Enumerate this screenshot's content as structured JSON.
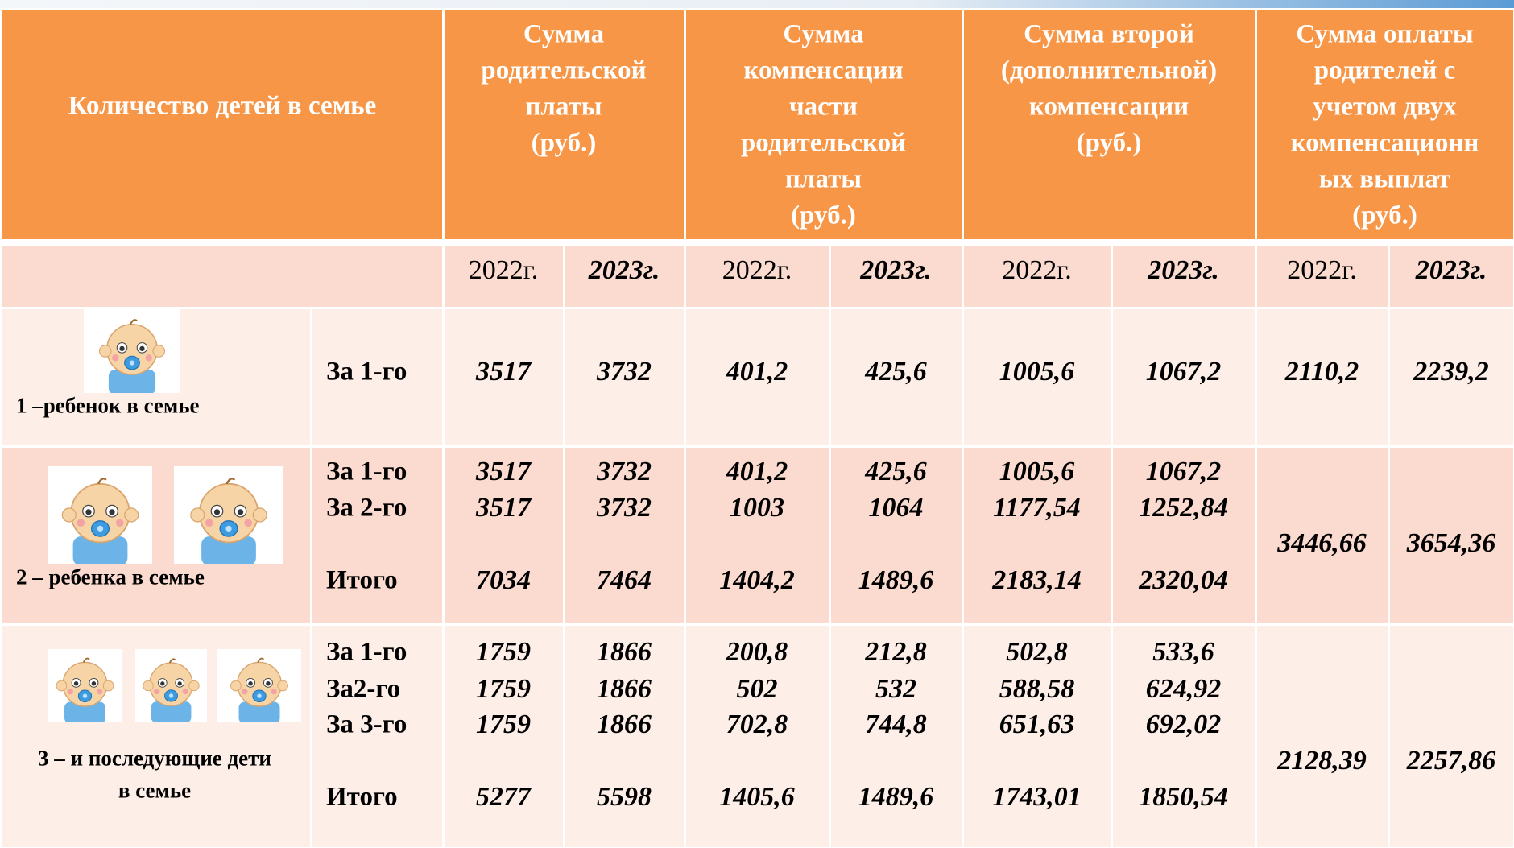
{
  "header": {
    "first": "Количество детей в семье",
    "groups": [
      [
        "Сумма",
        "родительской",
        "платы",
        "(руб.)"
      ],
      [
        "Сумма",
        "компенсации",
        "части",
        "родительской",
        "платы",
        "(руб.)"
      ],
      [
        "Сумма второй",
        "(дополнительной)",
        "компенсации",
        "(руб.)"
      ],
      [
        "Сумма оплаты",
        "родителей с",
        "учетом двух",
        "компенсационн",
        "ых выплат",
        "(руб.)"
      ]
    ],
    "years": [
      "2022г.",
      "2023г.",
      "2022г.",
      "2023г.",
      "2022г.",
      "2023г.",
      "2022г.",
      "2023г."
    ]
  },
  "rows": [
    {
      "label": [
        "1 –ребенок в семье"
      ],
      "lines": [
        {
          "name": "За 1-го",
          "values": [
            "3517",
            "3732",
            "401,2",
            "425,6",
            "1005,6",
            "1067,2",
            "2110,2",
            "2239,2"
          ]
        }
      ]
    },
    {
      "label": [
        "2 – ребенка в семье"
      ],
      "lines": [
        {
          "name": "За 1-го",
          "values": [
            "3517",
            "3732",
            "401,2",
            "425,6",
            "1005,6",
            "1067,2"
          ]
        },
        {
          "name": "За 2-го",
          "values": [
            "3517",
            "3732",
            "1003",
            "1064",
            "1177,54",
            "1252,84"
          ]
        },
        {
          "name": "Итого",
          "values": [
            "7034",
            "7464",
            "1404,2",
            "1489,6",
            "2183,14",
            "2320,04"
          ]
        }
      ],
      "totals": [
        "3446,66",
        "3654,36"
      ]
    },
    {
      "label": [
        "3 – и последующие дети",
        "в семье"
      ],
      "lines": [
        {
          "name": "За 1-го",
          "values": [
            "1759",
            "1866",
            "200,8",
            "212,8",
            "502,8",
            "533,6"
          ]
        },
        {
          "name": "За2-го",
          "values": [
            "1759",
            "1866",
            "502",
            "532",
            "588,58",
            "624,92"
          ]
        },
        {
          "name": "За 3-го",
          "values": [
            "1759",
            "1866",
            "702,8",
            "744,8",
            "651,63",
            "692,02"
          ]
        },
        {
          "name": "Итого",
          "values": [
            "5277",
            "5598",
            "1405,6",
            "1489,6",
            "1743,01",
            "1850,54"
          ]
        }
      ],
      "totals": [
        "2128,39",
        "2257,86"
      ]
    }
  ]
}
